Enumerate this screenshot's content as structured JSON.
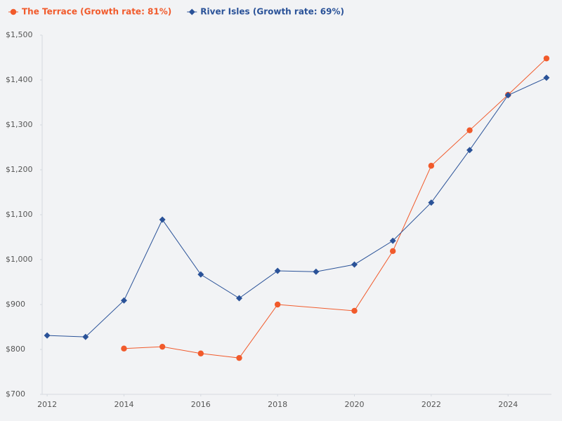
{
  "chart_data": {
    "type": "line",
    "series": [
      {
        "name": "The Terrace (Growth rate: 81%)",
        "color": "#f15a2b",
        "marker": "circle",
        "x": [
          2014,
          2015,
          2016,
          2017,
          2018,
          2020,
          2021,
          2022,
          2023,
          2024,
          2025
        ],
        "values": [
          802,
          806,
          791,
          781,
          900,
          886,
          1019,
          1209,
          1288,
          1367,
          1448
        ]
      },
      {
        "name": "River Isles (Growth rate: 69%)",
        "color": "#2a5298",
        "marker": "diamond",
        "x": [
          2012,
          2013,
          2014,
          2015,
          2016,
          2017,
          2018,
          2019,
          2020,
          2021,
          2022,
          2023,
          2024,
          2025
        ],
        "values": [
          831,
          828,
          909,
          1089,
          967,
          914,
          975,
          973,
          989,
          1042,
          1127,
          1244,
          1366,
          1405
        ]
      }
    ],
    "xlim": [
      2011.87,
      2025.13
    ],
    "xticks": [
      2012,
      2014,
      2016,
      2018,
      2020,
      2022,
      2024
    ],
    "ylim": [
      700,
      1500
    ],
    "yticks": [
      {
        "value": 700,
        "label": "$700"
      },
      {
        "value": 800,
        "label": "$800"
      },
      {
        "value": 900,
        "label": "$900"
      },
      {
        "value": 1000,
        "label": "$1,000"
      },
      {
        "value": 1100,
        "label": "$1,100"
      },
      {
        "value": 1200,
        "label": "$1,200"
      },
      {
        "value": 1300,
        "label": "$1,300"
      },
      {
        "value": 1400,
        "label": "$1,400"
      },
      {
        "value": 1500,
        "label": "$1,500"
      }
    ],
    "legend": "top-left"
  }
}
